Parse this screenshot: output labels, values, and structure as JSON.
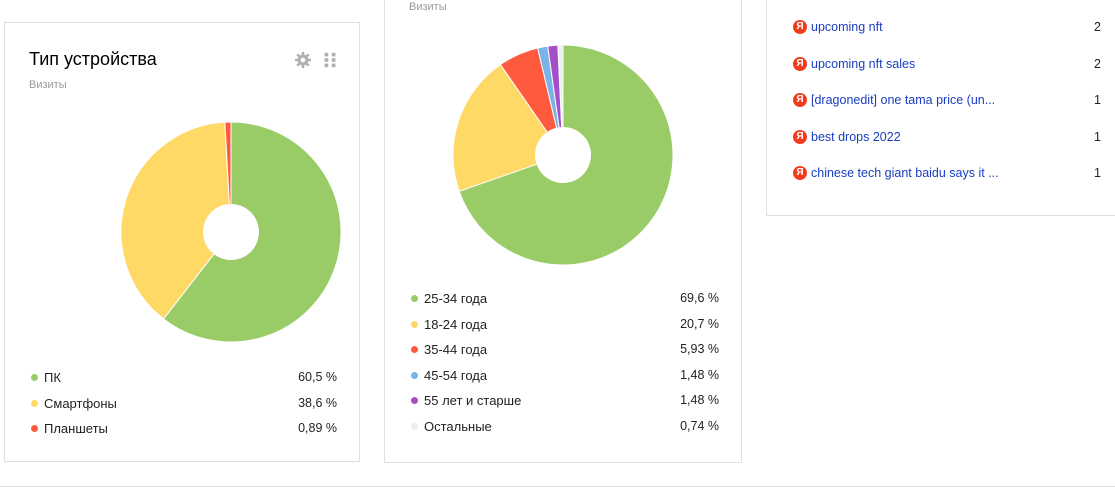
{
  "device_widget": {
    "title": "Тип устройства",
    "subtitle": "Визиты",
    "icons": [
      "gear-icon",
      "drag-handle-icon"
    ],
    "legend": [
      {
        "label": "ПК",
        "percent": "60,5 %",
        "value": 60.5,
        "color": "#99cc66"
      },
      {
        "label": "Смартфоны",
        "percent": "38,6 %",
        "value": 38.6,
        "color": "#ffd966"
      },
      {
        "label": "Планшеты",
        "percent": "0,89 %",
        "value": 0.89,
        "color": "#ff5a3d"
      }
    ]
  },
  "age_widget": {
    "subtitle": "Визиты",
    "legend": [
      {
        "label": "25-34 года",
        "percent": "69,6 %",
        "value": 69.6,
        "color": "#99cc66"
      },
      {
        "label": "18-24 года",
        "percent": "20,7 %",
        "value": 20.7,
        "color": "#ffd966"
      },
      {
        "label": "35-44 года",
        "percent": "5,93 %",
        "value": 5.93,
        "color": "#ff5a3d"
      },
      {
        "label": "45-54 года",
        "percent": "1,48 %",
        "value": 1.48,
        "color": "#7ab3e8"
      },
      {
        "label": "55 лет и старше",
        "percent": "1,48 %",
        "value": 1.48,
        "color": "#a24fc8"
      },
      {
        "label": "Остальные",
        "percent": "0,74 %",
        "value": 0.74,
        "color": "#eeeeee"
      }
    ]
  },
  "search_widget": {
    "icon": "yandex-icon",
    "icon_glyph": "Я",
    "rows": [
      {
        "phrase": "upcoming nft",
        "count": "2"
      },
      {
        "phrase": "upcoming nft sales",
        "count": "2"
      },
      {
        "phrase": "[dragonedit] one tama price (un...",
        "count": "1"
      },
      {
        "phrase": "best drops 2022",
        "count": "1"
      },
      {
        "phrase": "chinese tech giant baidu says it ...",
        "count": "1"
      }
    ]
  }
}
